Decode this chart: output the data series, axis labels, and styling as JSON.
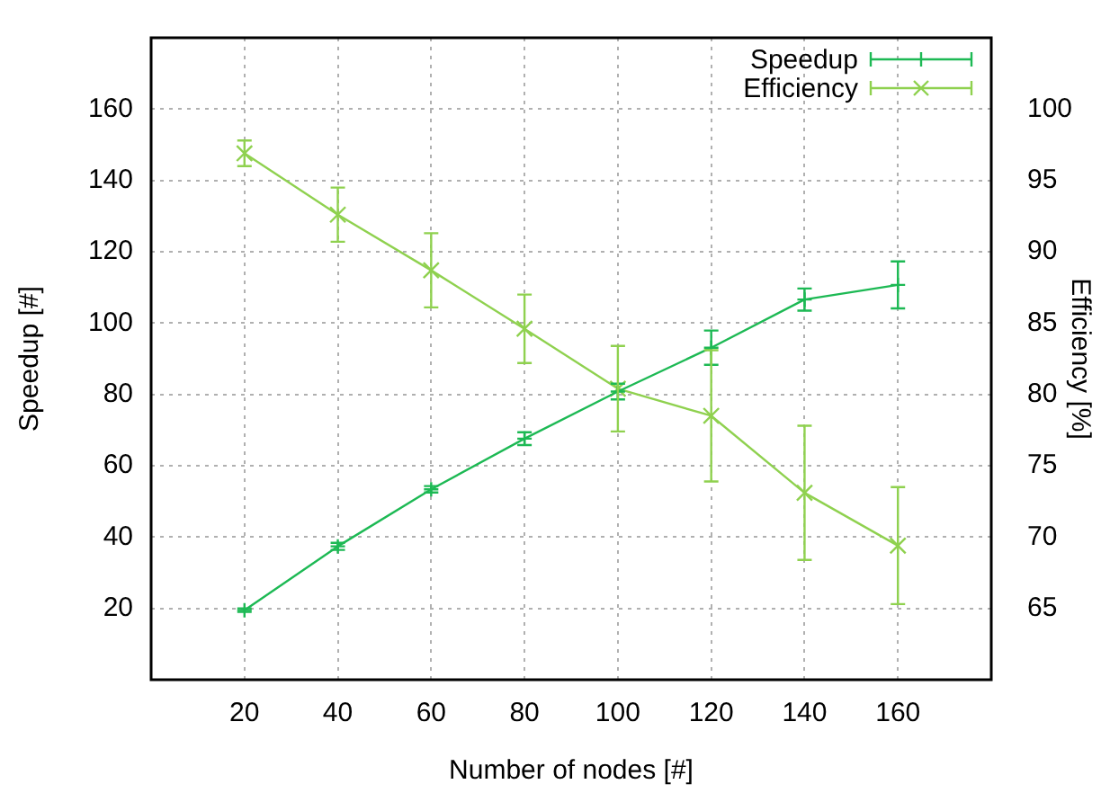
{
  "chart_data": {
    "type": "line",
    "xlabel": "Number of nodes [#]",
    "ylabel": "Speedup [#]",
    "y2label": "Efficiency [%]",
    "x": [
      20,
      40,
      60,
      80,
      100,
      120,
      140,
      160
    ],
    "series": [
      {
        "name": "Speedup",
        "color": "#1db954",
        "marker": "plus",
        "values": [
          19.5,
          37.4,
          53.4,
          67.6,
          80.8,
          93.1,
          106.6,
          110.7
        ],
        "errors": [
          0.5,
          1,
          0.9,
          1.8,
          2.2,
          4.8,
          3.1,
          6.6
        ]
      },
      {
        "name": "Efficiency",
        "color": "#8fd14f",
        "marker": "cross",
        "axis": "y2",
        "values": [
          96.9,
          92.6,
          88.7,
          84.6,
          80.4,
          78.5,
          73.1,
          69.4
        ],
        "errors": [
          0.9,
          1.9,
          2.6,
          2.4,
          3,
          4.6,
          4.7,
          4.1
        ]
      }
    ],
    "xlim": [
      0,
      180
    ],
    "xticks": [
      20,
      40,
      60,
      80,
      100,
      120,
      140,
      160
    ],
    "ylim": [
      0,
      180
    ],
    "yticks": [
      20,
      40,
      60,
      80,
      100,
      120,
      140,
      160
    ],
    "y2lim": [
      60,
      105
    ],
    "y2ticks": [
      65,
      70,
      75,
      80,
      85,
      90,
      95,
      100
    ],
    "grid": true,
    "legend": "top right",
    "line_style": "solid"
  }
}
